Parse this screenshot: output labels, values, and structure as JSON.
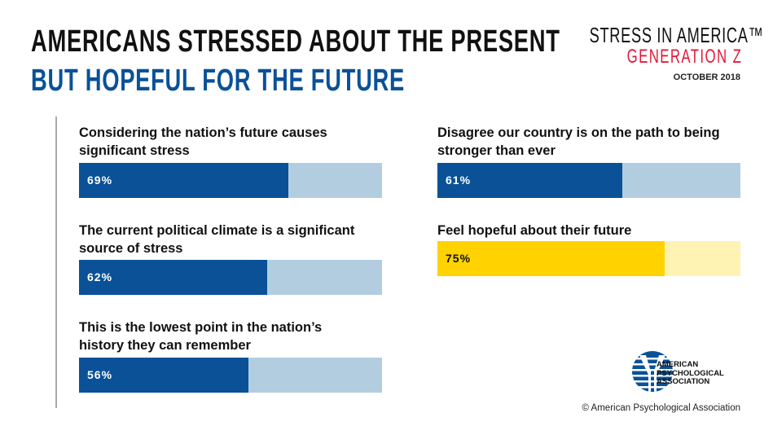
{
  "header": {
    "title_line1": "AMERICANS STRESSED ABOUT THE PRESENT",
    "title_line2": "BUT HOPEFUL FOR THE FUTURE"
  },
  "brand": {
    "name": "STRESS IN AMERICA™",
    "subtitle": "GENERATION Z",
    "date": "OCTOBER 2018"
  },
  "chart_data": {
    "type": "bar",
    "orientation": "horizontal",
    "xlim": [
      0,
      100
    ],
    "categories": [
      "Considering the nation's future causes significant stress",
      "The current political climate is a significant source of stress",
      "This is the lowest point in the nation's history they can remember",
      "Disagree our country is on the path to being stronger than ever",
      "Feel hopeful about their future"
    ],
    "values": [
      69,
      62,
      56,
      61,
      75
    ],
    "labels": [
      "69%",
      "62%",
      "56%",
      "61%",
      "75%"
    ],
    "colors": {
      "stress": "#0a5197",
      "stress_track": "#b3cde0",
      "hope": "#ffd200",
      "hope_track": "#fff3b3"
    }
  },
  "items": [
    {
      "l1": "Considering the nation’s future causes",
      "l2": "significant stress"
    },
    {
      "l1": "The current political climate is a significant",
      "l2": "source of stress"
    },
    {
      "l1": "This is the lowest point in the nation’s",
      "l2": "history they can remember"
    },
    {
      "l1": "Disagree our country is on the path to being",
      "l2": "stronger than ever"
    },
    {
      "l1": "Feel hopeful about their future",
      "l2": ""
    }
  ],
  "footer": {
    "org_line1": "AMERICAN",
    "org_line2": "PSYCHOLOGICAL",
    "org_line3": "ASSOCIATION",
    "copyright": "© American Psychological Association"
  }
}
